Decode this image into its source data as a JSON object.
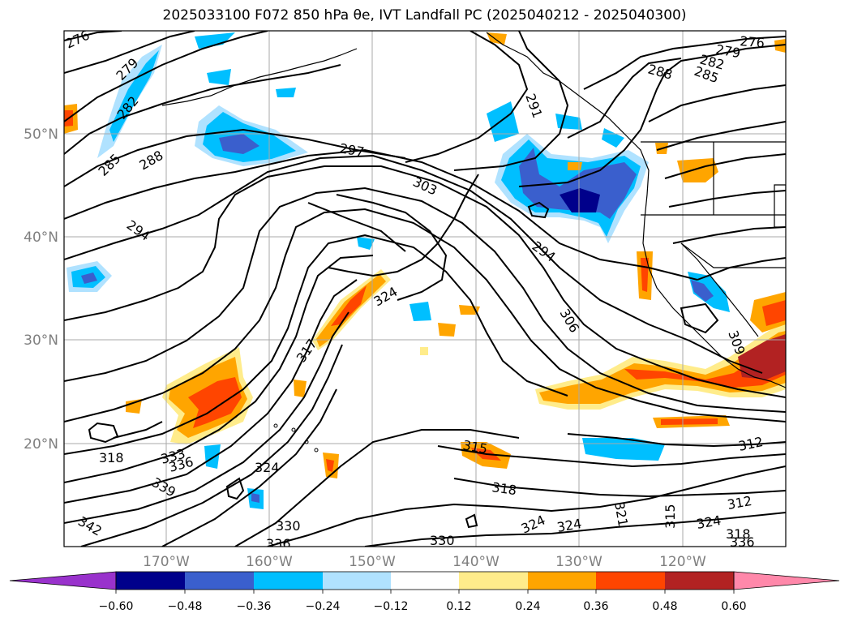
{
  "title": "2025033100 F072 850 hPa θe, IVT Landfall PC (2025040212 - 2025040300)",
  "map": {
    "lat_labels": [
      "50°N",
      "40°N",
      "30°N",
      "20°N"
    ],
    "lon_labels": [
      "170°W",
      "160°W",
      "150°W",
      "140°W",
      "130°W",
      "120°W"
    ],
    "contour_labels": [
      {
        "text": "276"
      },
      {
        "text": "279"
      },
      {
        "text": "282"
      },
      {
        "text": "285"
      },
      {
        "text": "288"
      },
      {
        "text": "294"
      },
      {
        "text": "297"
      },
      {
        "text": "303"
      },
      {
        "text": "291"
      },
      {
        "text": "276"
      },
      {
        "text": "279"
      },
      {
        "text": "282"
      },
      {
        "text": "285"
      },
      {
        "text": "288"
      },
      {
        "text": "294"
      },
      {
        "text": "306"
      },
      {
        "text": "309"
      },
      {
        "text": "324"
      },
      {
        "text": "317"
      },
      {
        "text": "318"
      },
      {
        "text": "333"
      },
      {
        "text": "336"
      },
      {
        "text": "339"
      },
      {
        "text": "342"
      },
      {
        "text": "324"
      },
      {
        "text": "330"
      },
      {
        "text": "336"
      },
      {
        "text": "330"
      },
      {
        "text": "315"
      },
      {
        "text": "318"
      },
      {
        "text": "324"
      },
      {
        "text": "324"
      },
      {
        "text": "321"
      },
      {
        "text": "315"
      },
      {
        "text": "312"
      },
      {
        "text": "312"
      },
      {
        "text": "324"
      },
      {
        "text": "318"
      },
      {
        "text": "336"
      }
    ]
  },
  "colorbar": {
    "ticks": [
      "−0.60",
      "−0.48",
      "−0.36",
      "−0.24",
      "−0.12",
      "0.12",
      "0.24",
      "0.36",
      "0.48",
      "0.60"
    ],
    "colors": [
      "#9932cc",
      "#00008b",
      "#3a5fcd",
      "#00bfff",
      "#b0e2ff",
      "#ffffff",
      "#ffec8b",
      "#ffa500",
      "#ff4500",
      "#b22222",
      "#ff88aa"
    ]
  }
}
